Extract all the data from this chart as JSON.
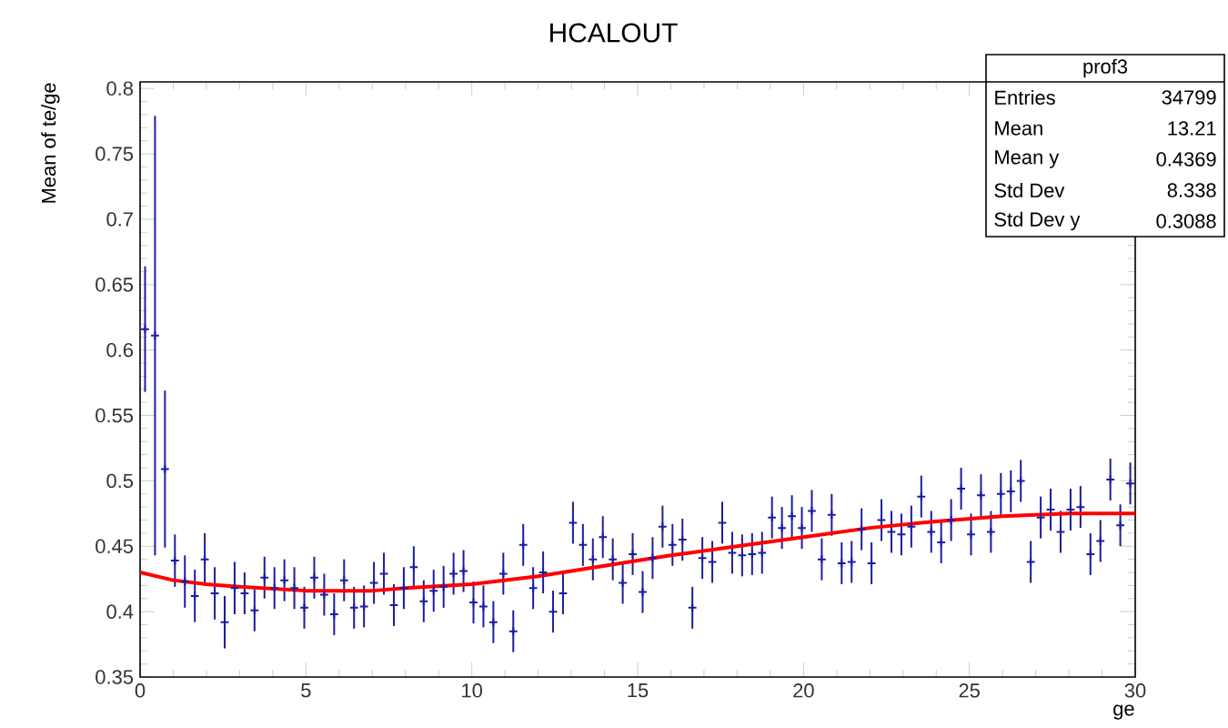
{
  "chart_data": {
    "type": "scatter",
    "title": "HCALOUT",
    "xlabel": "ge",
    "ylabel": "Mean of te/ge",
    "xlim": [
      0,
      30
    ],
    "ylim": [
      0.35,
      0.805
    ],
    "xticks": [
      0,
      5,
      10,
      15,
      20,
      25,
      30
    ],
    "yticks": [
      0.35,
      0.4,
      0.45,
      0.5,
      0.55,
      0.6,
      0.65,
      0.7,
      0.75,
      0.8
    ],
    "marker": "cross",
    "annotations": [
      "prof3",
      "Entries",
      "34799",
      "Mean",
      "13.21",
      "Mean y",
      "0.4369",
      "Std Dev",
      "8.338",
      "Std Dev y",
      "0.3088"
    ],
    "series": [
      {
        "color": "#1c1ca0",
        "x": [
          0.15,
          0.45,
          0.75,
          1.05,
          1.35,
          1.65,
          1.95,
          2.25,
          2.55,
          2.85,
          3.15,
          3.45,
          3.75,
          4.05,
          4.35,
          4.65,
          4.95,
          5.25,
          5.55,
          5.85,
          6.15,
          6.45,
          6.75,
          7.05,
          7.35,
          7.65,
          7.95,
          8.25,
          8.55,
          8.85,
          9.15,
          9.45,
          9.75,
          10.05,
          10.35,
          10.65,
          10.95,
          11.25,
          11.55,
          11.85,
          12.15,
          12.45,
          12.75,
          13.05,
          13.35,
          13.65,
          13.95,
          14.25,
          14.55,
          14.85,
          15.15,
          15.45,
          15.75,
          16.05,
          16.35,
          16.65,
          16.95,
          17.25,
          17.55,
          17.85,
          18.15,
          18.45,
          18.75,
          19.05,
          19.35,
          19.65,
          19.95,
          20.25,
          20.55,
          20.85,
          21.15,
          21.45,
          21.75,
          22.05,
          22.35,
          22.65,
          22.95,
          23.25,
          23.55,
          23.85,
          24.15,
          24.45,
          24.75,
          25.05,
          25.35,
          25.65,
          25.95,
          26.25,
          26.55,
          26.85,
          27.15,
          27.45,
          27.75,
          28.05,
          28.35,
          28.65,
          28.95,
          29.25,
          29.55,
          29.85
        ],
        "values": [
          0.616,
          0.611,
          0.509,
          0.439,
          0.423,
          0.412,
          0.44,
          0.414,
          0.392,
          0.418,
          0.414,
          0.401,
          0.426,
          0.418,
          0.424,
          0.418,
          0.403,
          0.426,
          0.413,
          0.398,
          0.424,
          0.403,
          0.404,
          0.422,
          0.429,
          0.405,
          0.418,
          0.434,
          0.408,
          0.416,
          0.419,
          0.429,
          0.431,
          0.407,
          0.404,
          0.392,
          0.429,
          0.385,
          0.451,
          0.418,
          0.43,
          0.4,
          0.414,
          0.468,
          0.451,
          0.44,
          0.457,
          0.44,
          0.422,
          0.444,
          0.415,
          0.441,
          0.465,
          0.451,
          0.455,
          0.403,
          0.441,
          0.438,
          0.468,
          0.445,
          0.443,
          0.444,
          0.445,
          0.472,
          0.464,
          0.473,
          0.464,
          0.477,
          0.44,
          0.474,
          0.437,
          0.438,
          0.463,
          0.437,
          0.47,
          0.461,
          0.459,
          0.465,
          0.488,
          0.461,
          0.453,
          0.47,
          0.494,
          0.459,
          0.489,
          0.461,
          0.49,
          0.492,
          0.5,
          0.438,
          0.472,
          0.478,
          0.461,
          0.478,
          0.48,
          0.444,
          0.454,
          0.501,
          0.466,
          0.498
        ],
        "errors": [
          0.048,
          0.168,
          0.06,
          0.02,
          0.02,
          0.02,
          0.02,
          0.02,
          0.02,
          0.02,
          0.016,
          0.016,
          0.016,
          0.016,
          0.016,
          0.016,
          0.016,
          0.016,
          0.016,
          0.016,
          0.016,
          0.016,
          0.016,
          0.016,
          0.016,
          0.016,
          0.016,
          0.016,
          0.016,
          0.016,
          0.016,
          0.016,
          0.016,
          0.016,
          0.016,
          0.016,
          0.016,
          0.016,
          0.016,
          0.016,
          0.016,
          0.016,
          0.016,
          0.016,
          0.016,
          0.016,
          0.016,
          0.016,
          0.016,
          0.016,
          0.016,
          0.016,
          0.016,
          0.016,
          0.016,
          0.016,
          0.016,
          0.016,
          0.016,
          0.016,
          0.016,
          0.016,
          0.016,
          0.016,
          0.016,
          0.016,
          0.016,
          0.016,
          0.016,
          0.016,
          0.016,
          0.016,
          0.016,
          0.016,
          0.016,
          0.016,
          0.016,
          0.016,
          0.016,
          0.016,
          0.016,
          0.016,
          0.016,
          0.016,
          0.016,
          0.016,
          0.016,
          0.016,
          0.016,
          0.016,
          0.016,
          0.016,
          0.016,
          0.016,
          0.016,
          0.016,
          0.016,
          0.016,
          0.016,
          0.016
        ]
      },
      {
        "type": "line",
        "color": "#ff0000",
        "marker": "none",
        "x": [
          0,
          1,
          2,
          3,
          5,
          7,
          8,
          10,
          12,
          14,
          15,
          16,
          18,
          20,
          22,
          24,
          26,
          28,
          30
        ],
        "values": [
          0.43,
          0.424,
          0.421,
          0.419,
          0.416,
          0.416,
          0.418,
          0.421,
          0.427,
          0.435,
          0.439,
          0.443,
          0.45,
          0.457,
          0.464,
          0.469,
          0.473,
          0.475,
          0.475
        ]
      }
    ]
  }
}
